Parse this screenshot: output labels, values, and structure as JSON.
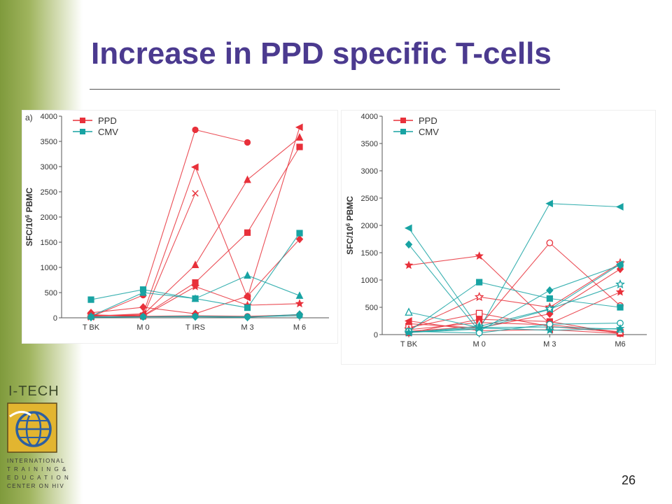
{
  "slide": {
    "title": "Increase in PPD specific T-cells",
    "page_number": "26"
  },
  "logo": {
    "brand": "I-TECH",
    "caption_lines": [
      "INTERNATIONAL",
      "T R A I N I N G &",
      "E D U C A T I O N",
      "CENTER ON HIV"
    ]
  },
  "colors": {
    "ppd": "#e8303a",
    "cmv": "#18a3a3",
    "title": "#4b3a8f",
    "sidebar": "#8fa64a"
  },
  "chart_data": [
    {
      "type": "line",
      "panel_label": "a)",
      "categories": [
        "T BK",
        "M 0",
        "T IRS",
        "M 3",
        "M 6"
      ],
      "ylabel_parts": [
        "SFC/10",
        "6",
        " PBMC"
      ],
      "ylim": [
        0,
        4000
      ],
      "yticks": [
        0,
        500,
        1000,
        1500,
        2000,
        2500,
        3000,
        3500,
        4000
      ],
      "legend": [
        {
          "name": "PPD",
          "color": "#e8303a"
        },
        {
          "name": "CMV",
          "color": "#18a3a3"
        }
      ],
      "legend_placement": "top-left",
      "series": [
        {
          "group": "PPD",
          "marker": "circle",
          "values": [
            20,
            450,
            3730,
            3480,
            null
          ]
        },
        {
          "group": "PPD",
          "marker": "triangle-left",
          "values": [
            30,
            80,
            2990,
            400,
            3780
          ]
        },
        {
          "group": "PPD",
          "marker": "x",
          "values": [
            10,
            30,
            2470,
            null,
            null
          ]
        },
        {
          "group": "PPD",
          "marker": "triangle",
          "values": [
            40,
            60,
            1050,
            2740,
            3580
          ]
        },
        {
          "group": "PPD",
          "marker": "square",
          "values": [
            50,
            40,
            700,
            1690,
            3390
          ]
        },
        {
          "group": "PPD",
          "marker": "star",
          "values": [
            60,
            30,
            620,
            250,
            280
          ]
        },
        {
          "group": "PPD",
          "marker": "diamond",
          "values": [
            100,
            210,
            80,
            430,
            1560
          ]
        },
        {
          "group": "PPD",
          "marker": "circle",
          "values": [
            20,
            30,
            40,
            30,
            60
          ]
        },
        {
          "group": "CMV",
          "marker": "square",
          "values": [
            360,
            560,
            380,
            200,
            1680
          ]
        },
        {
          "group": "CMV",
          "marker": "triangle",
          "values": [
            30,
            500,
            380,
            840,
            440
          ]
        },
        {
          "group": "CMV",
          "marker": "diamond",
          "values": [
            10,
            20,
            20,
            10,
            70
          ]
        },
        {
          "group": "CMV",
          "marker": "circle",
          "values": [
            20,
            20,
            30,
            20,
            40
          ]
        }
      ]
    },
    {
      "type": "line",
      "categories": [
        "T BK",
        "M 0",
        "M 3",
        "M6"
      ],
      "ylabel_parts": [
        "SFC/10",
        "6",
        " PBMC"
      ],
      "ylim": [
        0,
        4000
      ],
      "yticks": [
        0,
        500,
        1000,
        1500,
        2000,
        2500,
        3000,
        3500,
        4000
      ],
      "legend": [
        {
          "name": "PPD",
          "color": "#e8303a"
        },
        {
          "name": "CMV",
          "color": "#18a3a3"
        }
      ],
      "legend_placement": "top-left",
      "series": [
        {
          "group": "PPD",
          "marker": "star",
          "values": [
            1270,
            1440,
            200,
            780
          ]
        },
        {
          "group": "PPD",
          "marker": "circle-open",
          "values": [
            60,
            150,
            1680,
            530
          ]
        },
        {
          "group": "PPD",
          "marker": "star-open",
          "values": [
            100,
            690,
            500,
            1310
          ]
        },
        {
          "group": "PPD",
          "marker": "diamond",
          "values": [
            200,
            120,
            380,
            1200
          ]
        },
        {
          "group": "PPD",
          "marker": "square-open",
          "values": [
            130,
            390,
            150,
            40
          ]
        },
        {
          "group": "PPD",
          "marker": "square",
          "values": [
            30,
            280,
            240,
            20
          ]
        },
        {
          "group": "PPD",
          "marker": "triangle-left",
          "values": [
            250,
            70,
            90,
            20
          ]
        },
        {
          "group": "PPD",
          "marker": "triangle-open",
          "values": [
            90,
            220,
            180,
            50
          ]
        },
        {
          "group": "CMV",
          "marker": "triangle-left",
          "values": [
            40,
            100,
            2400,
            2340
          ]
        },
        {
          "group": "CMV",
          "marker": "triangle-left",
          "values": [
            1950,
            110,
            460,
            1290
          ]
        },
        {
          "group": "CMV",
          "marker": "diamond",
          "values": [
            1650,
            60,
            810,
            1270
          ]
        },
        {
          "group": "CMV",
          "marker": "square",
          "values": [
            60,
            960,
            660,
            500
          ]
        },
        {
          "group": "CMV",
          "marker": "star-open",
          "values": [
            40,
            150,
            470,
            920
          ]
        },
        {
          "group": "CMV",
          "marker": "triangle-open",
          "values": [
            410,
            130,
            140,
            100
          ]
        },
        {
          "group": "CMV",
          "marker": "circle-open",
          "values": [
            60,
            30,
            190,
            210
          ]
        },
        {
          "group": "CMV",
          "marker": "star",
          "values": [
            40,
            120,
            80,
            110
          ]
        }
      ]
    }
  ]
}
